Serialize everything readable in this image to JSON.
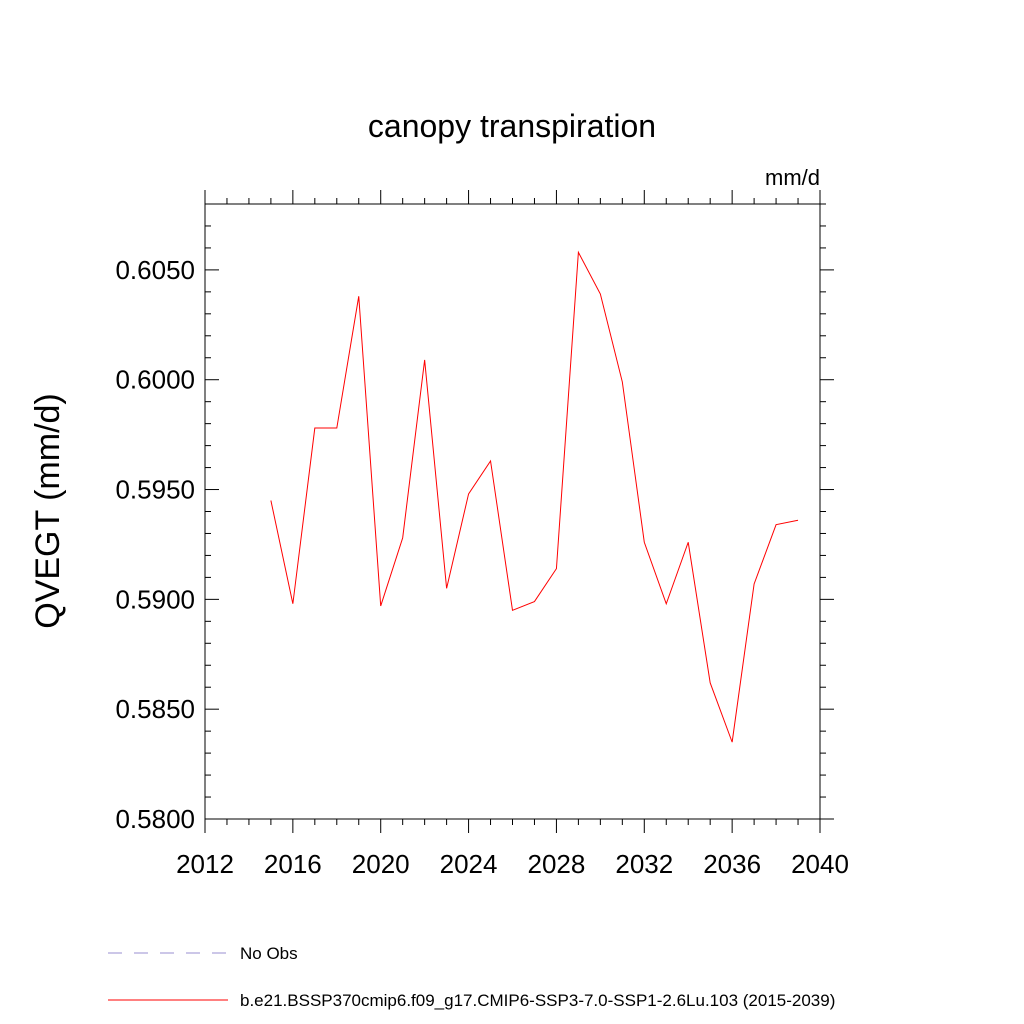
{
  "chart_data": {
    "type": "line",
    "title": "canopy transpiration",
    "units": "mm/d",
    "ylabel": "QVEGT  (mm/d)",
    "xlabel": "",
    "xlim": [
      2012,
      2040
    ],
    "ylim": [
      0.58,
      0.608
    ],
    "xticks": [
      2012,
      2016,
      2020,
      2024,
      2028,
      2032,
      2036,
      2040
    ],
    "xtick_labels": [
      "2012",
      "2016",
      "2020",
      "2024",
      "2028",
      "2032",
      "2036",
      "2040"
    ],
    "yticks": [
      0.58,
      0.585,
      0.59,
      0.595,
      0.6,
      0.605
    ],
    "ytick_labels": [
      "0.5800",
      "0.5850",
      "0.5900",
      "0.5950",
      "0.6000",
      "0.6050"
    ],
    "grid": false,
    "legend_position": "bottom-left",
    "series": [
      {
        "name": "b.e21.BSSP370cmip6.f09_g17.CMIP6-SSP3-7.0-SSP1-2.6Lu.103 (2015-2039)",
        "color": "#ff0000",
        "style": "solid",
        "x": [
          2015,
          2016,
          2017,
          2018,
          2019,
          2020,
          2021,
          2022,
          2023,
          2024,
          2025,
          2026,
          2027,
          2028,
          2029,
          2030,
          2031,
          2032,
          2033,
          2034,
          2035,
          2036,
          2037,
          2038,
          2039
        ],
        "y": [
          0.5945,
          0.5898,
          0.5978,
          0.5978,
          0.6038,
          0.5897,
          0.5928,
          0.6009,
          0.5905,
          0.5948,
          0.5963,
          0.5895,
          0.5899,
          0.5914,
          0.6058,
          0.6039,
          0.5999,
          0.5926,
          0.5898,
          0.5926,
          0.5862,
          0.5835,
          0.5907,
          0.5934,
          0.5936
        ]
      },
      {
        "name": "No Obs",
        "color": "#9a8fd0",
        "style": "dashed",
        "x": [],
        "y": []
      }
    ]
  }
}
